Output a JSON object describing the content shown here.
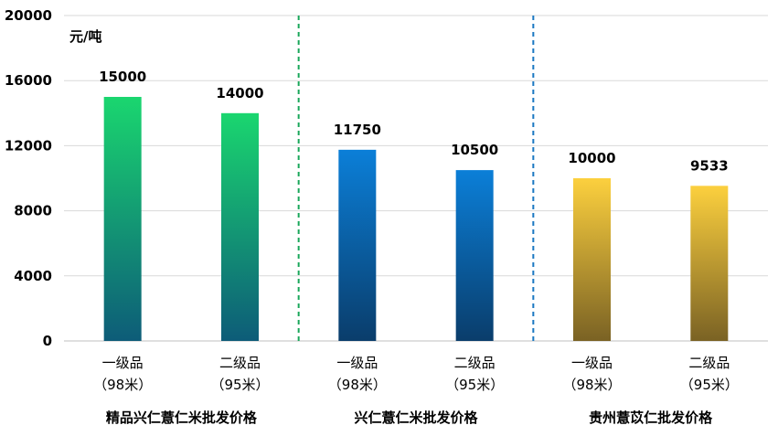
{
  "chart_data": {
    "type": "bar",
    "unit_label": "元/吨",
    "ylim": [
      0,
      20000
    ],
    "yticks": [
      0,
      4000,
      8000,
      12000,
      16000,
      20000
    ],
    "grid": true,
    "groups": [
      {
        "name": "精品兴仁薏仁米批发价格",
        "color_top": "#1ad66f",
        "color_bottom": "#0d5c78",
        "bars": [
          {
            "label_line1": "一级品",
            "label_line2": "（98米）",
            "value": 15000
          },
          {
            "label_line1": "二级品",
            "label_line2": "（95米）",
            "value": 14000
          }
        ]
      },
      {
        "name": "兴仁薏仁米批发价格",
        "color_top": "#0b7fd8",
        "color_bottom": "#0a3d6b",
        "bars": [
          {
            "label_line1": "一级品",
            "label_line2": "（98米）",
            "value": 11750
          },
          {
            "label_line1": "二级品",
            "label_line2": "（95米）",
            "value": 10500
          }
        ]
      },
      {
        "name": "贵州薏苡仁批发价格",
        "color_top": "#fcd03e",
        "color_bottom": "#7a6224",
        "bars": [
          {
            "label_line1": "一级品",
            "label_line2": "（98米）",
            "value": 10000
          },
          {
            "label_line1": "二级品",
            "label_line2": "（95米）",
            "value": 9533
          }
        ]
      }
    ],
    "separators": [
      {
        "after_group": 0,
        "color": "#1aa75a"
      },
      {
        "after_group": 1,
        "color": "#1a78c2"
      }
    ]
  }
}
